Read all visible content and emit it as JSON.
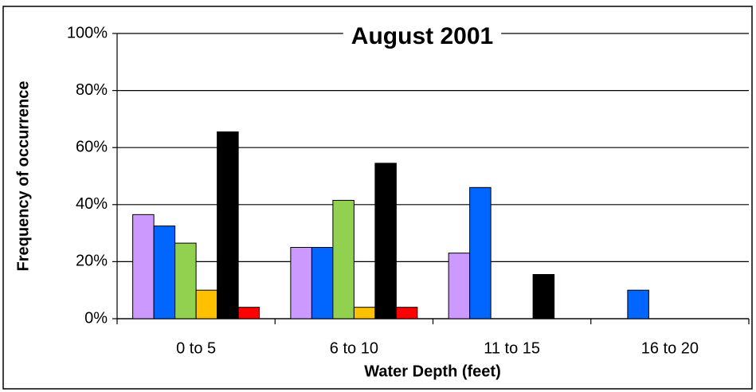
{
  "chart_data": {
    "type": "bar",
    "title": "August 2001",
    "x_label": "Water Depth (feet)",
    "y_label": "Frequency of occurrence",
    "categories": [
      "0 to 5",
      "6 to 10",
      "11 to 15",
      "16 to 20"
    ],
    "series": [
      {
        "color": "#cc99ff",
        "values": [
          36.5,
          25,
          23,
          0
        ]
      },
      {
        "color": "#0066ff",
        "values": [
          32.5,
          25,
          46,
          10
        ]
      },
      {
        "color": "#92d050",
        "values": [
          26.5,
          41.5,
          0,
          0
        ]
      },
      {
        "color": "#ffc000",
        "values": [
          10,
          4,
          0,
          0
        ]
      },
      {
        "color": "#000000",
        "values": [
          65.5,
          54.5,
          15.5,
          0
        ]
      },
      {
        "color": "#ff0000",
        "values": [
          4,
          4,
          0,
          0
        ]
      }
    ],
    "ylim": [
      0,
      100
    ],
    "yticks": [
      {
        "value": 0,
        "label": "0%"
      },
      {
        "value": 20,
        "label": "20%"
      },
      {
        "value": 40,
        "label": "40%"
      },
      {
        "value": 60,
        "label": "60%"
      },
      {
        "value": 80,
        "label": "80%"
      },
      {
        "value": 100,
        "label": "100%"
      }
    ],
    "grid": true
  }
}
